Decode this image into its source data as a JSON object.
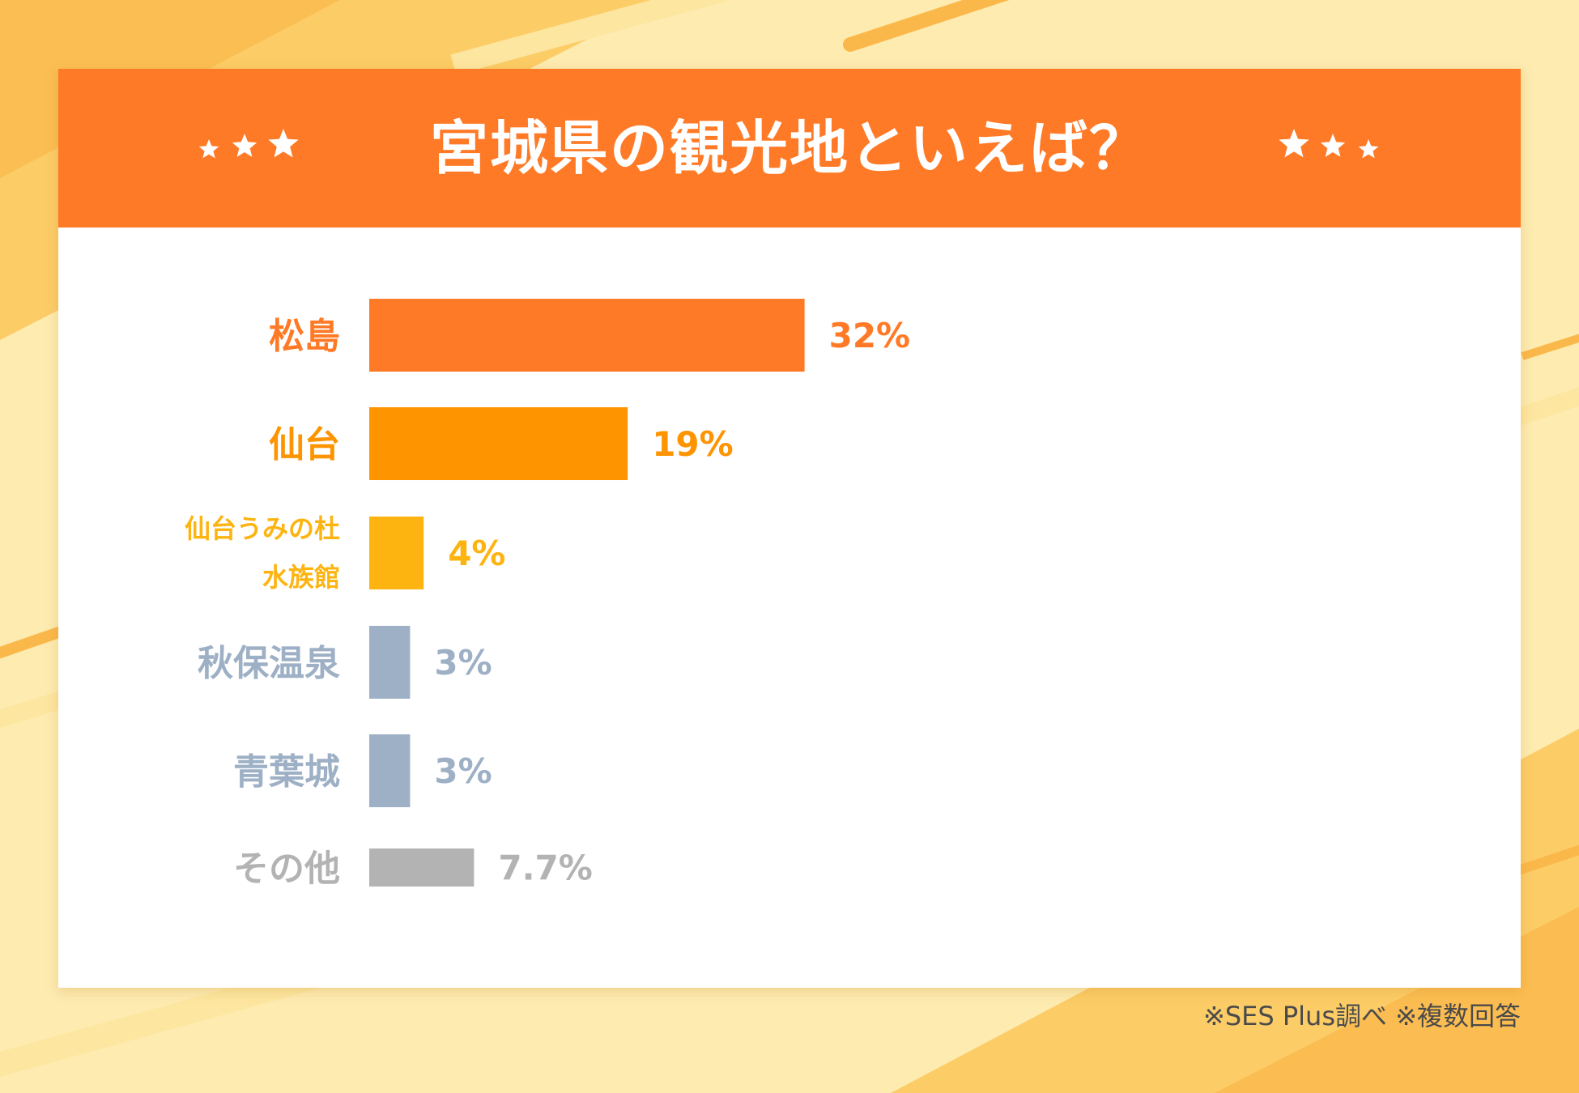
{
  "title": "宮城県の観光地といえば？",
  "footnote": "※SES Plus調べ ※複数回答",
  "chart_data": {
    "type": "bar",
    "orientation": "horizontal",
    "title": "宮城県の観光地といえば？",
    "categories": [
      [
        "松島"
      ],
      [
        "仙台"
      ],
      [
        "仙台うみの杜",
        "水族館"
      ],
      [
        "秋保温泉"
      ],
      [
        "青葉城"
      ],
      [
        "その他"
      ]
    ],
    "values": [
      32,
      19,
      4,
      3,
      3,
      7.7
    ],
    "value_labels": [
      "32%",
      "19%",
      "4%",
      "3%",
      "3%",
      "7.7%"
    ],
    "colors": [
      "#ff7a26",
      "#fd9400",
      "#fdb410",
      "#9db0c5",
      "#9db0c5",
      "#b3b3b3"
    ],
    "xlim": [
      0,
      100
    ],
    "grid": false,
    "legend": "none"
  }
}
